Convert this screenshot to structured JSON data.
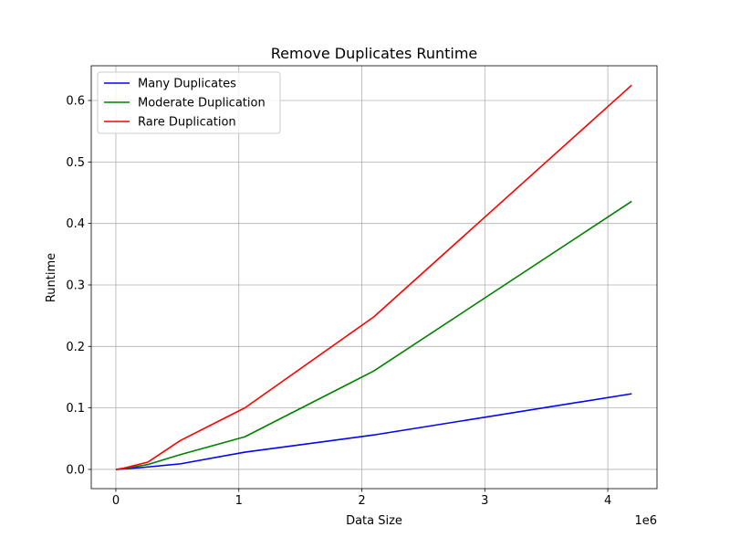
{
  "chart_data": {
    "type": "line",
    "title": "Remove Duplicates Runtime",
    "xlabel": "Data Size",
    "ylabel": "Runtime",
    "x_offset_label": "1e6",
    "xlim": [
      -200000,
      4400000
    ],
    "ylim": [
      -0.0313,
      0.6565
    ],
    "xticks": [
      0,
      1000000,
      2000000,
      3000000,
      4000000
    ],
    "xtick_labels": [
      "0",
      "1",
      "2",
      "3",
      "4"
    ],
    "yticks": [
      0.0,
      0.1,
      0.2,
      0.3,
      0.4,
      0.5,
      0.6
    ],
    "ytick_labels": [
      "0.0",
      "0.1",
      "0.2",
      "0.3",
      "0.4",
      "0.5",
      "0.6"
    ],
    "grid": true,
    "legend_position": "upper-left",
    "x": [
      1024,
      4096,
      16384,
      65536,
      262144,
      524288,
      1048576,
      2097152,
      4194304
    ],
    "series": [
      {
        "name": "Many Duplicates",
        "color": "#0000ff",
        "values": [
          0.0,
          0.0,
          0.0002,
          0.0008,
          0.004,
          0.009,
          0.028,
          0.056,
          0.123
        ]
      },
      {
        "name": "Moderate Duplication",
        "color": "#008000",
        "values": [
          0.0,
          0.0,
          0.0003,
          0.0012,
          0.008,
          0.024,
          0.053,
          0.16,
          0.436
        ]
      },
      {
        "name": "Rare Duplication",
        "color": "#ff0000",
        "values": [
          0.0,
          0.0,
          0.0004,
          0.002,
          0.012,
          0.047,
          0.1,
          0.248,
          0.625
        ]
      }
    ]
  }
}
